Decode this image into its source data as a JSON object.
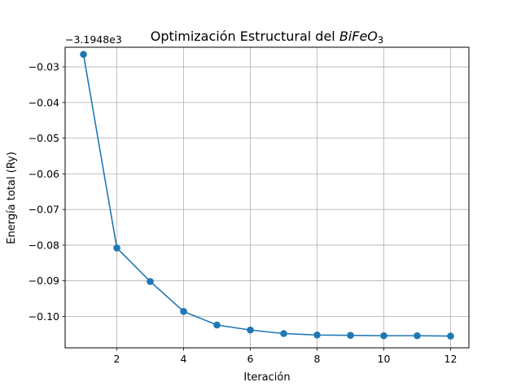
{
  "chart_data": {
    "type": "line",
    "title_main": "Optimización Estructural del ",
    "title_formula": "BiFeO",
    "title_subscript": "3",
    "xlabel": "Iteración",
    "ylabel": "Energía total (Ry)",
    "y_offset_text": "−3.1948e3",
    "xlim": [
      0.45,
      12.55
    ],
    "ylim": [
      -0.1088,
      -0.0245
    ],
    "x_ticks": [
      2,
      4,
      6,
      8,
      10,
      12
    ],
    "x_tick_labels": [
      "2",
      "4",
      "6",
      "8",
      "10",
      "12"
    ],
    "y_ticks": [
      -0.03,
      -0.04,
      -0.05,
      -0.06,
      -0.07,
      -0.08,
      -0.09,
      -0.1
    ],
    "y_tick_labels": [
      "−0.03",
      "−0.04",
      "−0.05",
      "−0.06",
      "−0.07",
      "−0.08",
      "−0.09",
      "−0.10"
    ],
    "grid": true,
    "series_color": "#1f77b4",
    "series": [
      {
        "x": [
          1,
          2,
          3,
          4,
          5,
          6,
          7,
          8,
          9,
          10,
          11,
          12
        ],
        "y": [
          -0.0265,
          -0.0808,
          -0.0902,
          -0.0986,
          -0.1024,
          -0.1038,
          -0.1048,
          -0.1052,
          -0.1053,
          -0.1054,
          -0.1054,
          -0.1055
        ]
      }
    ]
  }
}
